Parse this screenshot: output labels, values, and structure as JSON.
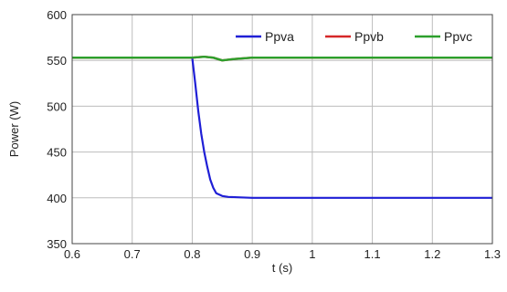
{
  "chart_data": {
    "type": "line",
    "title": "",
    "xlabel": "t (s)",
    "ylabel": "Power (W)",
    "xlim": [
      0.6,
      1.3
    ],
    "ylim": [
      350,
      600
    ],
    "xticks": [
      "0.6",
      "0.7",
      "0.8",
      "0.9",
      "1",
      "1.1",
      "1.2",
      "1.3"
    ],
    "yticks": [
      "350",
      "400",
      "450",
      "500",
      "550",
      "600"
    ],
    "grid": true,
    "legend_position": "top-right",
    "series": [
      {
        "name": "Ppva",
        "color": "#1f1fd6",
        "x": [
          0.6,
          0.7,
          0.8,
          0.805,
          0.81,
          0.815,
          0.82,
          0.825,
          0.83,
          0.835,
          0.84,
          0.85,
          0.86,
          0.88,
          0.9,
          1.0,
          1.1,
          1.2,
          1.3
        ],
        "y": [
          553,
          553,
          553,
          525,
          495,
          470,
          450,
          434,
          420,
          411,
          405,
          402,
          401,
          400.5,
          400,
          400,
          400,
          400,
          400
        ]
      },
      {
        "name": "Ppvb",
        "color": "#d62728",
        "x": [
          0.6,
          0.7,
          0.8,
          0.82,
          0.835,
          0.85,
          0.87,
          0.9,
          1.0,
          1.1,
          1.2,
          1.3
        ],
        "y": [
          553,
          553,
          553,
          554,
          553,
          550,
          551.5,
          553,
          553,
          553,
          553,
          553
        ]
      },
      {
        "name": "Ppvc",
        "color": "#2ca02c",
        "x": [
          0.6,
          0.7,
          0.8,
          0.82,
          0.835,
          0.85,
          0.87,
          0.9,
          1.0,
          1.1,
          1.2,
          1.3
        ],
        "y": [
          553,
          553,
          553,
          554,
          553,
          550,
          551.5,
          553,
          553,
          553,
          553,
          553
        ]
      }
    ]
  }
}
